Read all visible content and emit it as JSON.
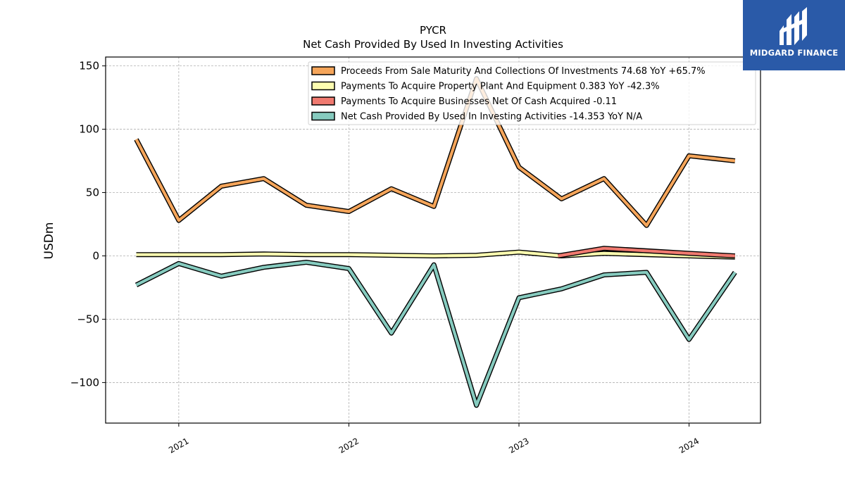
{
  "chart_data": {
    "type": "line",
    "title": "PYCR",
    "subtitle": "Net Cash Provided By Used In Investing Activities",
    "ylabel": "USDm",
    "xlabel": "",
    "ylim": [
      -132,
      157
    ],
    "xlim": [
      2020.57,
      2024.42
    ],
    "yticks": [
      150,
      100,
      50,
      0,
      -50,
      -100
    ],
    "ytick_labels": [
      "150",
      "100",
      "50",
      "0",
      "−50",
      "−100"
    ],
    "xticks": [
      2021,
      2022,
      2023,
      2024
    ],
    "xtick_labels": [
      "2021",
      "2022",
      "2023",
      "2024"
    ],
    "grid": true,
    "legend_position": "top-right",
    "series": [
      {
        "name": "Proceeds From Sale Maturity And Collections Of Investments",
        "legend_label": "Proceeds From Sale Maturity And Collections Of Investments  74.68 YoY +65.7%",
        "color": "#f5a55a",
        "x": [
          2020.75,
          2021.0,
          2021.25,
          2021.5,
          2021.75,
          2022.0,
          2022.25,
          2022.5,
          2022.75,
          2023.0,
          2023.25,
          2023.5,
          2023.75,
          2024.0,
          2024.27
        ],
        "y": [
          92,
          28,
          55,
          61,
          40,
          35,
          53,
          39,
          140,
          70,
          45,
          61,
          24,
          79,
          75
        ]
      },
      {
        "name": "Payments To Acquire Property Plant And Equipment",
        "legend_label": "Payments To Acquire Property Plant And Equipment  0.383 YoY -42.3%",
        "color": "#fdfdb0",
        "x": [
          2020.75,
          2021.0,
          2021.25,
          2021.5,
          2021.75,
          2022.0,
          2022.25,
          2022.5,
          2022.75,
          2023.0,
          2023.25,
          2023.5,
          2023.75,
          2024.0,
          2024.27
        ],
        "y": [
          1,
          1,
          1,
          1.5,
          1,
          1,
          0.5,
          0,
          0.5,
          3,
          0,
          2,
          1,
          0,
          -1
        ]
      },
      {
        "name": "Payments To Acquire Businesses Net Of Cash Acquired",
        "legend_label": "Payments To Acquire Businesses Net Of Cash Acquired  -0.11",
        "color": "#f07a70",
        "x": [
          2023.23,
          2023.5,
          2023.75,
          2024.0,
          2024.27
        ],
        "y": [
          0,
          6,
          4,
          2,
          0
        ]
      },
      {
        "name": "Net Cash Provided By Used In Investing Activities",
        "legend_label": "Net Cash Provided By Used In Investing Activities  -14.353 YoY N/A",
        "color": "#86cbbf",
        "x": [
          2020.75,
          2021.0,
          2021.25,
          2021.5,
          2021.75,
          2022.0,
          2022.25,
          2022.5,
          2022.75,
          2023.0,
          2023.25,
          2023.5,
          2023.75,
          2024.0,
          2024.27
        ],
        "y": [
          -23,
          -6,
          -16,
          -9,
          -5,
          -10,
          -61,
          -7,
          -118,
          -33,
          -26,
          -15,
          -13,
          -66,
          -13
        ]
      }
    ]
  },
  "logo": {
    "text": "MIDGARD FINANCE",
    "icon": "midgard-monogram-icon",
    "background": "#2a5aa8"
  }
}
